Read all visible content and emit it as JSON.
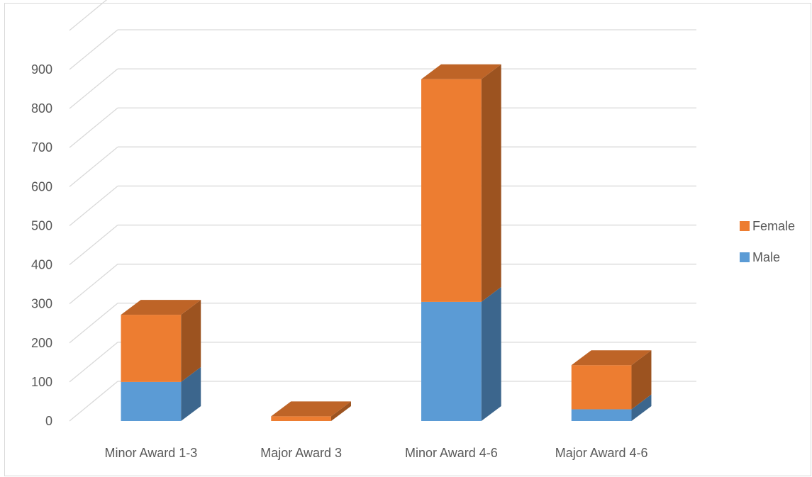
{
  "chart_data": {
    "type": "bar",
    "stacked": true,
    "three_d": true,
    "title": "",
    "xlabel": "",
    "ylabel": "",
    "categories": [
      "Minor Award 1-3",
      "Major Award 3",
      "Minor Award 4-6",
      "Major Award 4-6"
    ],
    "series": [
      {
        "name": "Male",
        "values": [
          100,
          0,
          305,
          30
        ],
        "color": "#5b9bd5"
      },
      {
        "name": "Female",
        "values": [
          172,
          12,
          570,
          113
        ],
        "color": "#ed7d31"
      }
    ],
    "ylim": [
      0,
      900
    ],
    "yticks": [
      "0",
      "100",
      "200",
      "300",
      "400",
      "500",
      "600",
      "700",
      "800",
      "900"
    ],
    "grid": true,
    "legend_position": "right",
    "legend_order": [
      "Female",
      "Male"
    ]
  }
}
